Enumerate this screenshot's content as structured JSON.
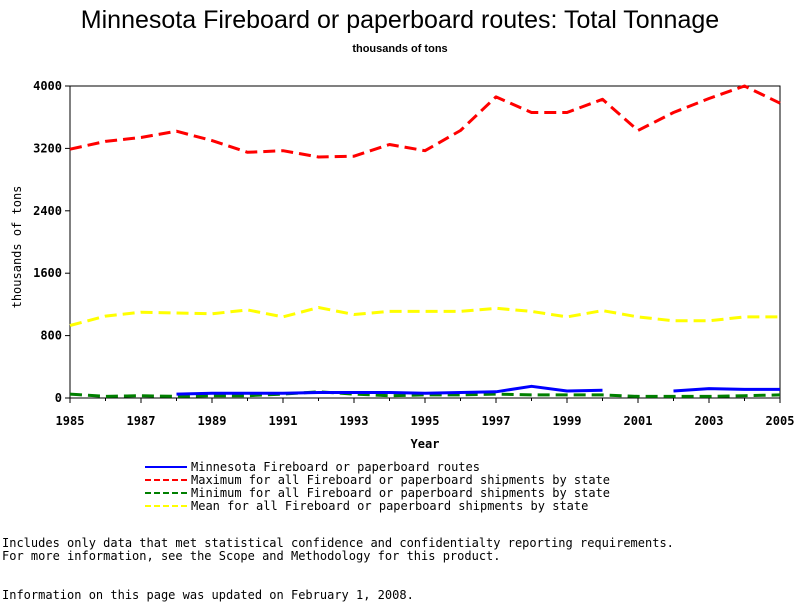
{
  "chart_data": {
    "type": "line",
    "title": "Minnesota Fireboard or paperboard routes: Total Tonnage",
    "subtitle": "thousands of tons",
    "xlabel": "Year",
    "ylabel": "thousands of tons",
    "xlim": [
      1985,
      2005
    ],
    "ylim": [
      0,
      4000
    ],
    "x_ticks": [
      "1985",
      "1987",
      "1989",
      "1991",
      "1993",
      "1995",
      "1997",
      "1999",
      "2001",
      "2003",
      "2005"
    ],
    "y_ticks": [
      "0",
      "800",
      "1600",
      "2400",
      "3200",
      "4000"
    ],
    "x": [
      1985,
      1986,
      1987,
      1988,
      1989,
      1990,
      1991,
      1992,
      1993,
      1994,
      1995,
      1996,
      1997,
      1998,
      1999,
      2000,
      2001,
      2002,
      2003,
      2004,
      2005
    ],
    "grid": false,
    "legend_position": "bottom",
    "series": [
      {
        "name": "Minnesota Fireboard or paperboard routes",
        "color": "#0000ff",
        "style": "solid",
        "values": [
          null,
          null,
          null,
          50,
          60,
          60,
          60,
          70,
          70,
          70,
          60,
          70,
          80,
          150,
          90,
          100,
          null,
          90,
          120,
          110,
          110
        ]
      },
      {
        "name": "Maximum for all Fireboard or paperboard shipments by state",
        "color": "#ff0000",
        "style": "dashed",
        "values": [
          3190,
          3290,
          3340,
          3420,
          3300,
          3150,
          3170,
          3090,
          3100,
          3250,
          3170,
          3430,
          3860,
          3660,
          3660,
          3830,
          3430,
          3660,
          3840,
          4000,
          3780
        ]
      },
      {
        "name": "Minimum for all Fireboard or paperboard shipments by state",
        "color": "#008000",
        "style": "dashed",
        "values": [
          50,
          20,
          30,
          20,
          30,
          30,
          50,
          80,
          50,
          30,
          40,
          40,
          50,
          40,
          40,
          40,
          20,
          20,
          20,
          30,
          40
        ]
      },
      {
        "name": "Mean for all Fireboard or paperboard shipments by state",
        "color": "#ffff00",
        "style": "dashed",
        "values": [
          930,
          1050,
          1100,
          1090,
          1080,
          1130,
          1040,
          1160,
          1070,
          1110,
          1110,
          1110,
          1150,
          1110,
          1040,
          1120,
          1040,
          990,
          990,
          1040,
          1040
        ]
      }
    ]
  },
  "notes": {
    "line1": "Includes only data that met statistical confidence and confidentialty reporting requirements.",
    "line2": "For more information, see the Scope and Methodology for this product.",
    "updated": "Information on this page was updated on February 1, 2008."
  }
}
